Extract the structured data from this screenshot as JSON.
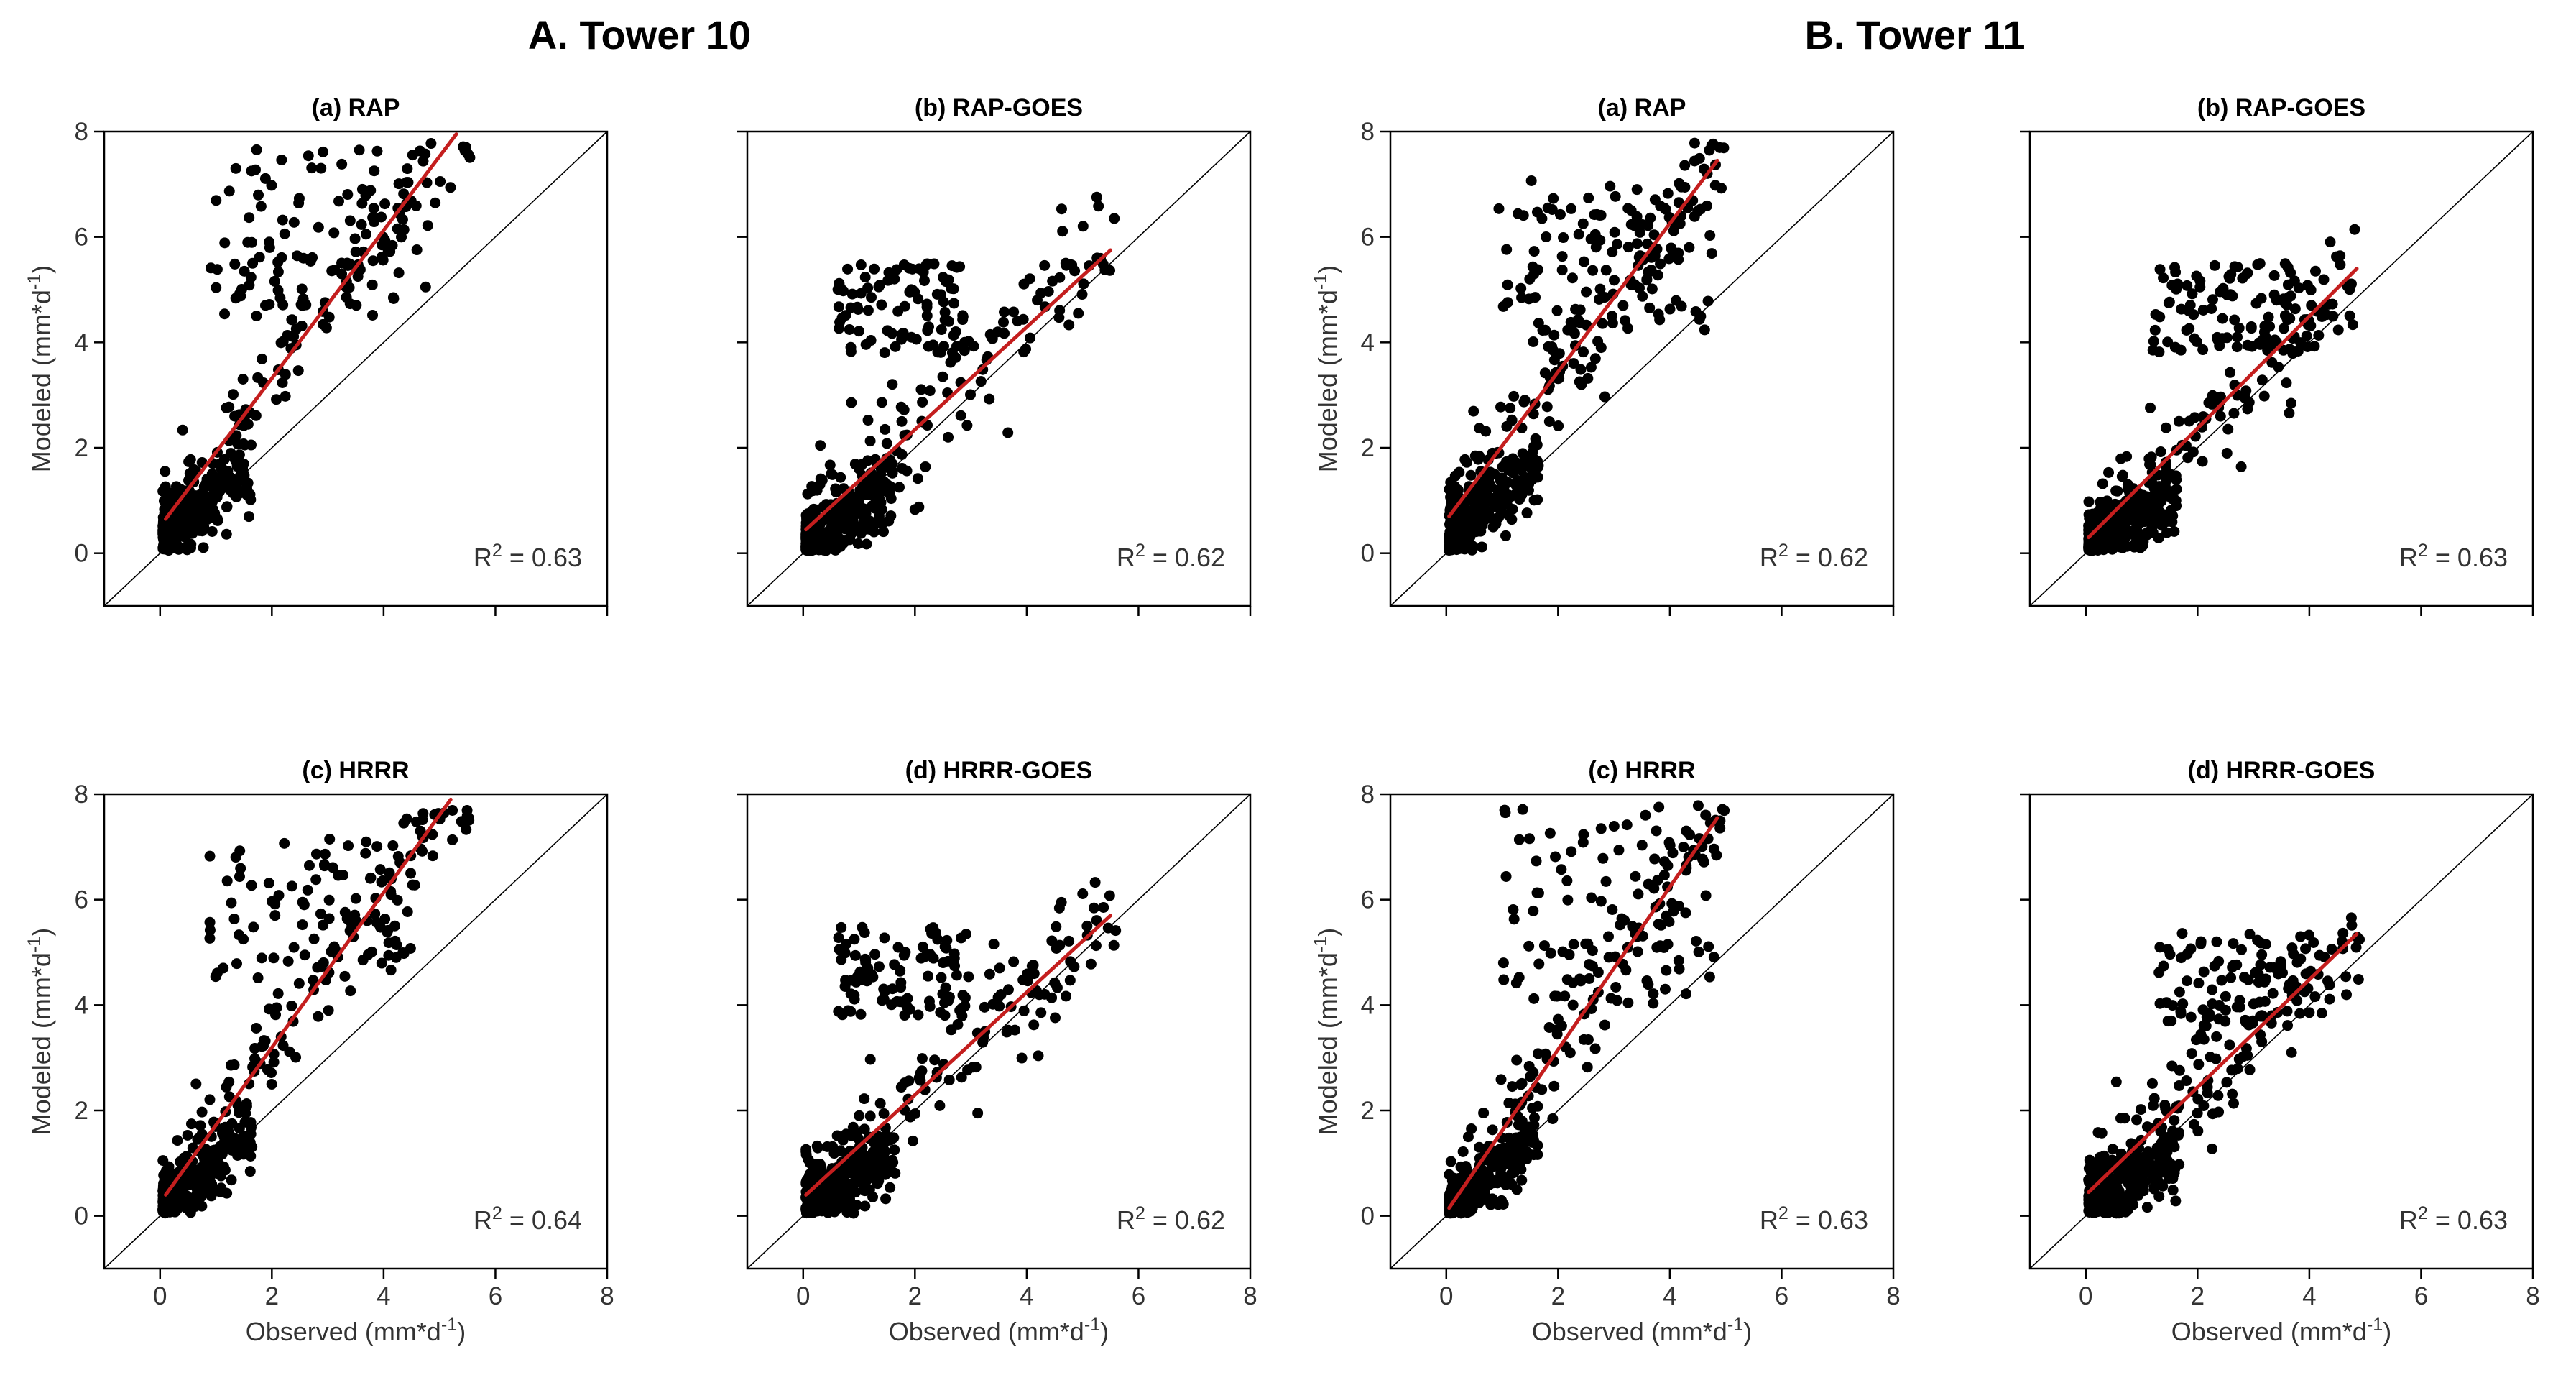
{
  "figure": {
    "groups": [
      {
        "title": "A. Tower 10"
      },
      {
        "title": "B. Tower 11"
      }
    ]
  },
  "chart_data": [
    {
      "type": "scatter",
      "group": "A. Tower 10",
      "title": "(a) RAP",
      "r2": "0.63",
      "xlabel": "Observed (mm*d-1)",
      "ylabel": "Modeled (mm*d-1)",
      "xlim": [
        -1,
        8
      ],
      "ylim": [
        -1,
        8
      ],
      "xticks": [
        0,
        2,
        4,
        6,
        8
      ],
      "yticks": [
        0,
        2,
        4,
        6,
        8
      ],
      "identity_line": [
        [
          -1,
          -1
        ],
        [
          8,
          8
        ]
      ],
      "regression_line": {
        "x": [
          0.1,
          5.3
        ],
        "y": [
          0.65,
          7.95
        ],
        "color": "#c41e1e"
      },
      "points": {
        "count": 450,
        "x_range": [
          0.05,
          5.6
        ],
        "slope": 1.4,
        "intercept": 0.55,
        "spread": 0.55,
        "high_cluster_y": [
          4.5,
          7.7
        ],
        "high_cluster_x": [
          0.8,
          4.8
        ],
        "seed": 11
      }
    },
    {
      "type": "scatter",
      "group": "A. Tower 10",
      "title": "(b) RAP-GOES",
      "r2": "0.62",
      "xlabel": "Observed (mm*d-1)",
      "ylabel": "Modeled (mm*d-1)",
      "xlim": [
        -1,
        8
      ],
      "ylim": [
        -1,
        8
      ],
      "xticks": [
        0,
        2,
        4,
        6,
        8
      ],
      "yticks": [
        0,
        2,
        4,
        6,
        8
      ],
      "identity_line": [
        [
          -1,
          -1
        ],
        [
          8,
          8
        ]
      ],
      "regression_line": {
        "x": [
          0.05,
          5.5
        ],
        "y": [
          0.45,
          5.75
        ],
        "color": "#c41e1e"
      },
      "points": {
        "count": 500,
        "x_range": [
          0.05,
          5.6
        ],
        "slope": 0.97,
        "intercept": 0.4,
        "spread": 0.6,
        "high_cluster_y": [
          3.8,
          5.5
        ],
        "high_cluster_x": [
          0.6,
          3.0
        ],
        "seed": 23
      }
    },
    {
      "type": "scatter",
      "group": "B. Tower 11",
      "title": "(a) RAP",
      "r2": "0.62",
      "xlabel": "Observed (mm*d-1)",
      "ylabel": "Modeled (mm*d-1)",
      "xlim": [
        -1,
        8
      ],
      "ylim": [
        -1,
        8
      ],
      "xticks": [
        0,
        2,
        4,
        6,
        8
      ],
      "yticks": [
        0,
        2,
        4,
        6,
        8
      ],
      "identity_line": [
        [
          -1,
          -1
        ],
        [
          8,
          8
        ]
      ],
      "regression_line": {
        "x": [
          0.05,
          4.85
        ],
        "y": [
          0.7,
          7.45
        ],
        "color": "#c41e1e"
      },
      "points": {
        "count": 470,
        "x_range": [
          0.05,
          5.0
        ],
        "slope": 1.42,
        "intercept": 0.6,
        "spread": 0.6,
        "high_cluster_y": [
          4.2,
          7.2
        ],
        "high_cluster_x": [
          0.9,
          4.8
        ],
        "seed": 37
      }
    },
    {
      "type": "scatter",
      "group": "B. Tower 11",
      "title": "(b) RAP-GOES",
      "r2": "0.63",
      "xlabel": "Observed (mm*d-1)",
      "ylabel": "Modeled (mm*d-1)",
      "xlim": [
        -1,
        8
      ],
      "ylim": [
        -1,
        8
      ],
      "xticks": [
        0,
        2,
        4,
        6,
        8
      ],
      "yticks": [
        0,
        2,
        4,
        6,
        8
      ],
      "identity_line": [
        [
          -1,
          -1
        ],
        [
          8,
          8
        ]
      ],
      "regression_line": {
        "x": [
          0.05,
          4.85
        ],
        "y": [
          0.3,
          5.4
        ],
        "color": "#c41e1e"
      },
      "points": {
        "count": 500,
        "x_range": [
          0.05,
          4.9
        ],
        "slope": 1.05,
        "intercept": 0.25,
        "spread": 0.55,
        "high_cluster_y": [
          3.8,
          5.5
        ],
        "high_cluster_x": [
          1.2,
          4.0
        ],
        "seed": 41
      }
    },
    {
      "type": "scatter",
      "group": "A. Tower 10",
      "title": "(c) HRRR",
      "r2": "0.64",
      "xlabel": "Observed (mm*d-1)",
      "ylabel": "Modeled (mm*d-1)",
      "xlim": [
        -1,
        8
      ],
      "ylim": [
        -1,
        8
      ],
      "xticks": [
        0,
        2,
        4,
        6,
        8
      ],
      "yticks": [
        0,
        2,
        4,
        6,
        8
      ],
      "identity_line": [
        [
          -1,
          -1
        ],
        [
          8,
          8
        ]
      ],
      "regression_line": {
        "x": [
          0.1,
          5.2
        ],
        "y": [
          0.4,
          7.9
        ],
        "color": "#c41e1e"
      },
      "points": {
        "count": 460,
        "x_range": [
          0.05,
          5.6
        ],
        "slope": 1.45,
        "intercept": 0.3,
        "spread": 0.55,
        "high_cluster_y": [
          4.5,
          7.2
        ],
        "high_cluster_x": [
          0.8,
          4.6
        ],
        "seed": 53
      }
    },
    {
      "type": "scatter",
      "group": "A. Tower 10",
      "title": "(d) HRRR-GOES",
      "r2": "0.62",
      "xlabel": "Observed (mm*d-1)",
      "ylabel": "Modeled (mm*d-1)",
      "xlim": [
        -1,
        8
      ],
      "ylim": [
        -1,
        8
      ],
      "xticks": [
        0,
        2,
        4,
        6,
        8
      ],
      "yticks": [
        0,
        2,
        4,
        6,
        8
      ],
      "identity_line": [
        [
          -1,
          -1
        ],
        [
          8,
          8
        ]
      ],
      "regression_line": {
        "x": [
          0.05,
          5.5
        ],
        "y": [
          0.4,
          5.7
        ],
        "color": "#c41e1e"
      },
      "points": {
        "count": 500,
        "x_range": [
          0.05,
          5.6
        ],
        "slope": 0.97,
        "intercept": 0.4,
        "spread": 0.6,
        "high_cluster_y": [
          3.8,
          5.5
        ],
        "high_cluster_x": [
          0.6,
          3.0
        ],
        "seed": 67
      }
    },
    {
      "type": "scatter",
      "group": "B. Tower 11",
      "title": "(c) HRRR",
      "r2": "0.63",
      "xlabel": "Observed (mm*d-1)",
      "ylabel": "Modeled (mm*d-1)",
      "xlim": [
        -1,
        8
      ],
      "ylim": [
        -1,
        8
      ],
      "xticks": [
        0,
        2,
        4,
        6,
        8
      ],
      "yticks": [
        0,
        2,
        4,
        6,
        8
      ],
      "identity_line": [
        [
          -1,
          -1
        ],
        [
          8,
          8
        ]
      ],
      "regression_line": {
        "x": [
          0.05,
          4.85
        ],
        "y": [
          0.15,
          7.55
        ],
        "color": "#c41e1e"
      },
      "points": {
        "count": 470,
        "x_range": [
          0.05,
          5.0
        ],
        "slope": 1.5,
        "intercept": 0.15,
        "spread": 0.6,
        "high_cluster_y": [
          4.0,
          7.8
        ],
        "high_cluster_x": [
          1.0,
          4.8
        ],
        "seed": 79
      }
    },
    {
      "type": "scatter",
      "group": "B. Tower 11",
      "title": "(d) HRRR-GOES",
      "r2": "0.63",
      "xlabel": "Observed (mm*d-1)",
      "ylabel": "Modeled (mm*d-1)",
      "xlim": [
        -1,
        8
      ],
      "ylim": [
        -1,
        8
      ],
      "xticks": [
        0,
        2,
        4,
        6,
        8
      ],
      "yticks": [
        0,
        2,
        4,
        6,
        8
      ],
      "identity_line": [
        [
          -1,
          -1
        ],
        [
          8,
          8
        ]
      ],
      "regression_line": {
        "x": [
          0.05,
          4.85
        ],
        "y": [
          0.45,
          5.35
        ],
        "color": "#c41e1e"
      },
      "points": {
        "count": 500,
        "x_range": [
          0.05,
          4.9
        ],
        "slope": 1.02,
        "intercept": 0.4,
        "spread": 0.55,
        "high_cluster_y": [
          3.6,
          5.4
        ],
        "high_cluster_x": [
          1.2,
          4.0
        ],
        "seed": 97
      }
    }
  ]
}
